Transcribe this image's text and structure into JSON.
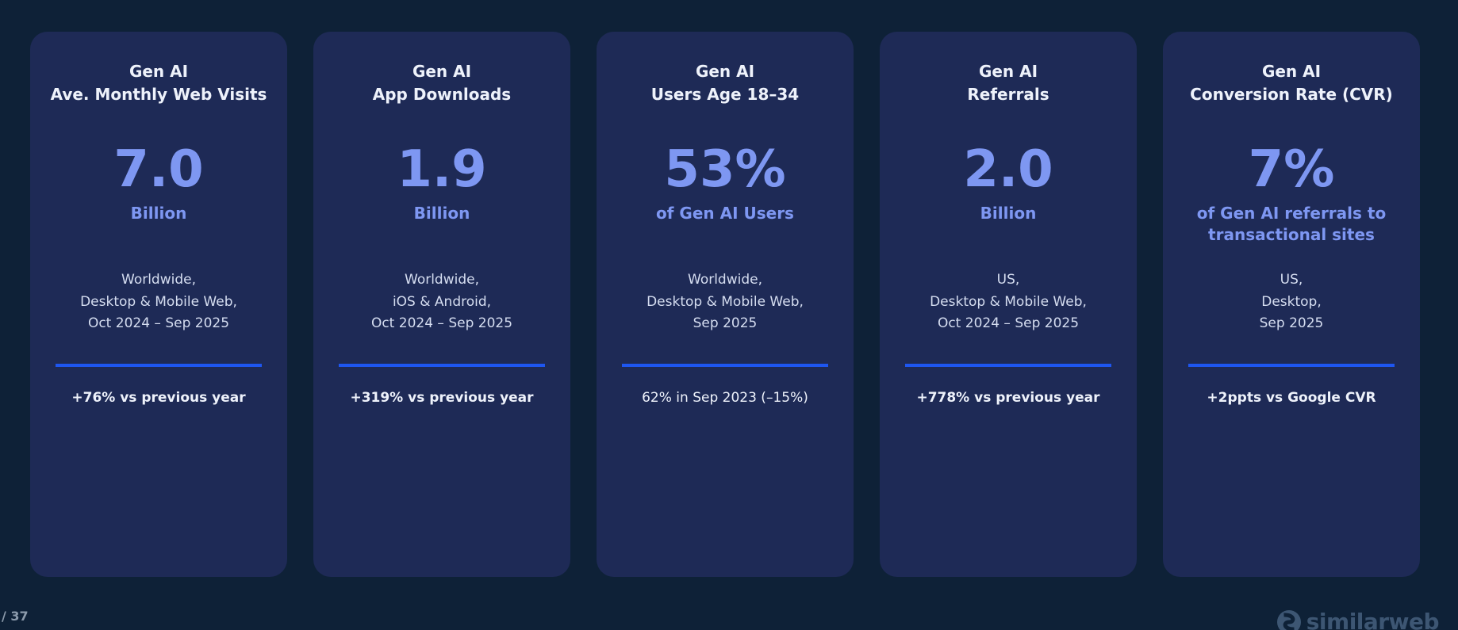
{
  "theme": {
    "background": "#0e2137",
    "card_background": "#1e2a56",
    "accent_text": "#7e97f2",
    "divider_blue": "#1e56f0",
    "heading_text": "#eef2fb",
    "detail_text": "#d5ddf0",
    "footer_text": "#8b9aab",
    "logo_color": "#3d5673"
  },
  "page": {
    "page_number": "/ 37"
  },
  "brand": {
    "logo_text": "similarweb",
    "logo_icon": "similarweb-s-icon"
  },
  "cards": [
    {
      "title_line1": "Gen AI",
      "title_line2": "Ave. Monthly Web Visits",
      "value": "7.0",
      "value_caption": "Billion",
      "details": [
        "Worldwide,",
        "Desktop & Mobile Web,",
        "Oct 2024 – Sep 2025"
      ],
      "stat": "+76% vs previous year",
      "stat_emphasis": true
    },
    {
      "title_line1": "Gen AI",
      "title_line2": "App Downloads",
      "value": "1.9",
      "value_caption": "Billion",
      "details": [
        "Worldwide,",
        "iOS & Android,",
        "Oct 2024 – Sep 2025"
      ],
      "stat": "+319% vs previous year",
      "stat_emphasis": true
    },
    {
      "title_line1": "Gen AI",
      "title_line2": "Users Age 18–34",
      "value": "53%",
      "value_caption": "of Gen AI Users",
      "details": [
        "Worldwide,",
        "Desktop & Mobile Web,",
        "Sep 2025"
      ],
      "stat": "62% in Sep 2023 (–15%)",
      "stat_emphasis": false
    },
    {
      "title_line1": "Gen AI",
      "title_line2": "Referrals",
      "value": "2.0",
      "value_caption": "Billion",
      "details": [
        "US,",
        "Desktop & Mobile Web,",
        "Oct 2024 – Sep 2025"
      ],
      "stat": "+778% vs previous year",
      "stat_emphasis": true
    },
    {
      "title_line1": "Gen AI",
      "title_line2": "Conversion Rate (CVR)",
      "value": "7%",
      "value_caption": "of Gen AI referrals to transactional sites",
      "details": [
        "US,",
        "Desktop,",
        "Sep 2025"
      ],
      "stat": "+2ppts vs Google CVR",
      "stat_emphasis": true
    }
  ]
}
